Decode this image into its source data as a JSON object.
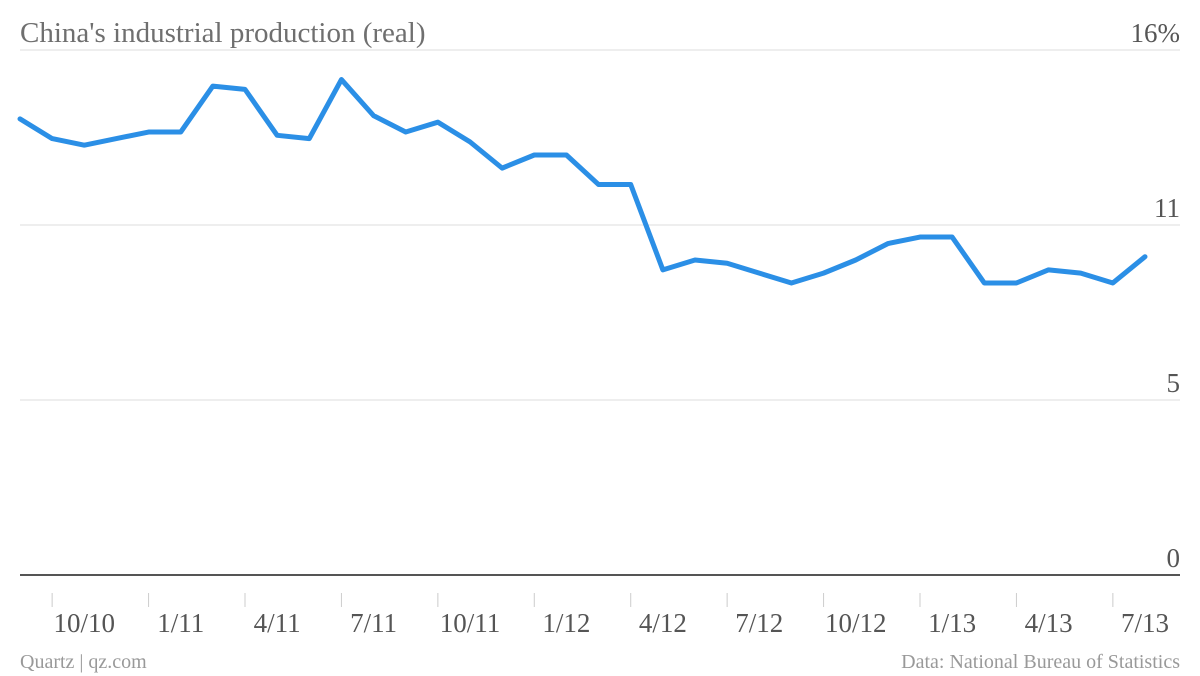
{
  "chart_data": {
    "type": "line",
    "title": "China's industrial production (real)",
    "source": "Data: National Bureau of Statistics",
    "credit": "Quartz | qz.com",
    "categories": [
      null,
      null,
      "10/10",
      null,
      null,
      "1/11",
      null,
      null,
      "4/11",
      null,
      null,
      "7/11",
      null,
      null,
      "10/11",
      null,
      null,
      "1/12",
      null,
      null,
      "4/12",
      null,
      null,
      "7/12",
      null,
      null,
      "10/12",
      null,
      null,
      "1/13",
      null,
      null,
      "4/13",
      null,
      null,
      "7/13"
    ],
    "series": [
      {
        "name": "Industrial production",
        "color": "#2b8fe6",
        "values": [
          13.9,
          13.3,
          13.1,
          13.3,
          13.5,
          13.5,
          14.9,
          14.8,
          13.4,
          13.3,
          15.1,
          14.0,
          13.5,
          13.8,
          13.2,
          12.4,
          12.8,
          12.8,
          11.9,
          11.9,
          9.3,
          9.6,
          9.5,
          9.2,
          8.9,
          9.2,
          9.6,
          10.1,
          10.3,
          10.3,
          8.9,
          8.9,
          9.3,
          9.2,
          8.9,
          9.7
        ]
      }
    ],
    "ylim": [
      0,
      16
    ],
    "yticks": [
      0,
      {
        "value": 5.333,
        "label": "5"
      },
      {
        "value": 10.667,
        "label": "11"
      },
      {
        "value": 16,
        "label": "16%"
      }
    ],
    "grid": true
  }
}
